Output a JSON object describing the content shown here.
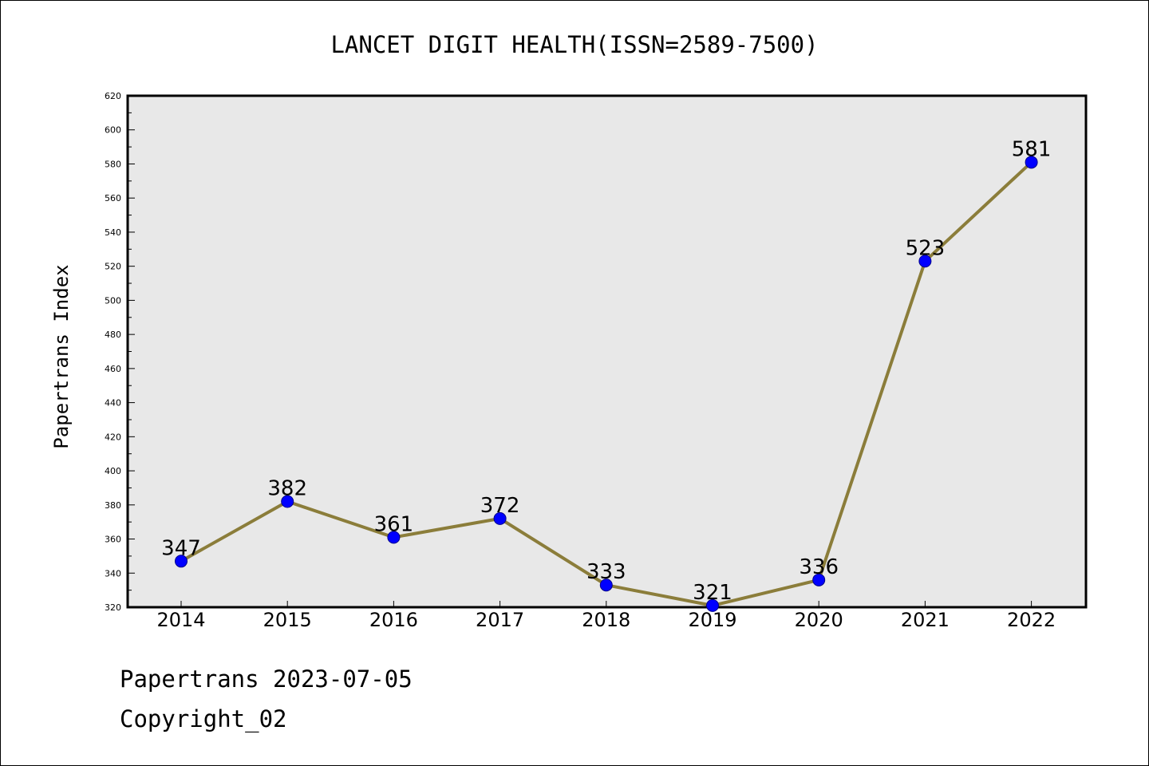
{
  "chart_data": {
    "type": "line",
    "title": "LANCET DIGIT HEALTH(ISSN=2589-7500)",
    "xlabel": "",
    "ylabel": "Papertrans Index",
    "categories": [
      "2014",
      "2015",
      "2016",
      "2017",
      "2018",
      "2019",
      "2020",
      "2021",
      "2022"
    ],
    "series": [
      {
        "values": [
          347,
          382,
          361,
          372,
          333,
          321,
          336,
          523,
          581
        ]
      }
    ],
    "data_labels": [
      "347",
      "382",
      "361",
      "372",
      "333",
      "321",
      "336",
      "523",
      "581"
    ],
    "ylim": [
      320,
      620
    ],
    "yticks": [
      320,
      340,
      360,
      380,
      400,
      420,
      440,
      460,
      480,
      500,
      520,
      540,
      560,
      580,
      600,
      620
    ],
    "ytick_labels": [
      "320",
      "340",
      "360",
      "380",
      "400",
      "420",
      "440",
      "460",
      "480",
      "500",
      "520",
      "540",
      "560",
      "580",
      "600",
      "620"
    ],
    "grid": false,
    "legend": "none",
    "colors": {
      "line": "#8b7d3a",
      "marker": "#0000ff",
      "plot_bg": "#e8e8e8"
    }
  },
  "footer": {
    "line1": "Papertrans 2023-07-05",
    "line2": "Copyright_02"
  }
}
